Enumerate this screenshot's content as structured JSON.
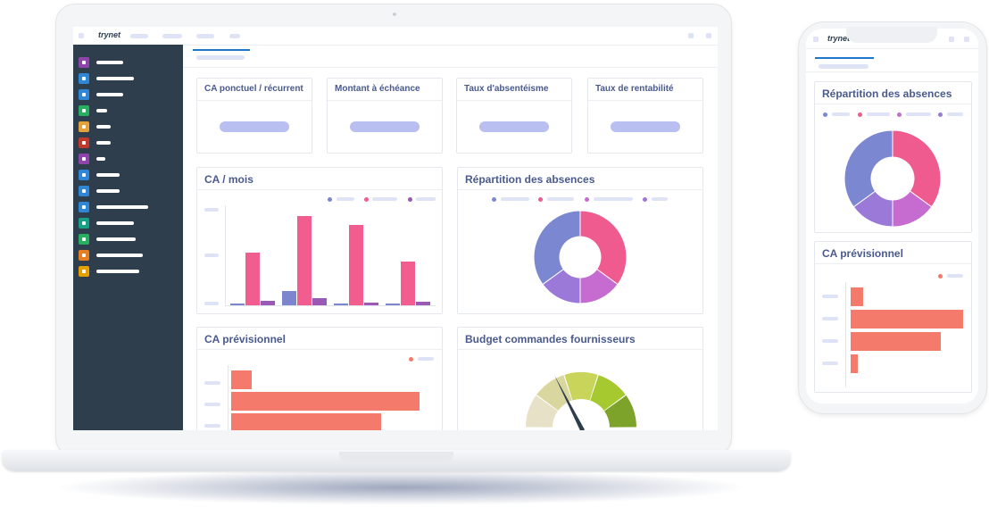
{
  "app": {
    "logo": "trynet"
  },
  "laptop": {
    "sidebar_icon_colors": [
      "#8e44ad",
      "#2f86d6",
      "#2f86d6",
      "#27ae60",
      "#e5a23b",
      "#c0392b",
      "#8e44ad",
      "#2f86d6",
      "#2f86d6",
      "#2f86d6",
      "#16a085",
      "#27ae60",
      "#e67e22",
      "#e5a000"
    ],
    "kpis": [
      {
        "title": "CA ponctuel / récurrent"
      },
      {
        "title": "Montant à échéance"
      },
      {
        "title": "Taux d'absentéisme"
      },
      {
        "title": "Taux de rentabilité"
      }
    ],
    "ca_mois": {
      "title": "CA / mois"
    },
    "absences": {
      "title": "Répartition des absences"
    },
    "ca_prev": {
      "title": "CA prévisionnel"
    },
    "budget": {
      "title": "Budget commandes fournisseurs"
    }
  },
  "phone": {
    "absences": {
      "title": "Répartition des absences"
    },
    "ca_prev": {
      "title": "CA prévisionnel"
    }
  },
  "chart_data": [
    {
      "type": "bar",
      "title": "CA / mois",
      "categories": [
        "",
        "",
        "",
        ""
      ],
      "series": [
        {
          "color": "#7b86cf",
          "values": [
            1,
            16,
            1,
            1
          ]
        },
        {
          "color": "#f05d8e",
          "values": [
            58,
            98,
            88,
            48
          ]
        },
        {
          "color": "#9b59b6",
          "values": [
            5,
            8,
            3,
            4
          ]
        }
      ],
      "ylim": [
        0,
        100
      ],
      "legend": "top-right"
    },
    {
      "type": "pie",
      "title": "Répartition des absences",
      "donut": true,
      "slices": [
        {
          "value": 35,
          "color": "#ef5b8e"
        },
        {
          "value": 15,
          "color": "#c66bd0"
        },
        {
          "value": 15,
          "color": "#9b79d8"
        },
        {
          "value": 35,
          "color": "#7b88d1"
        }
      ],
      "legend": "top"
    },
    {
      "type": "bar",
      "orientation": "horizontal",
      "title": "CA prévisionnel",
      "values": [
        10,
        90,
        72,
        0
      ],
      "color": "#f47b6c",
      "xlim": [
        0,
        100
      ],
      "legend": "top-right"
    },
    {
      "type": "gauge",
      "title": "Budget commandes fournisseurs",
      "segments": [
        "#e6e1c7",
        "#d9d79f",
        "#c9d45a",
        "#a6c92f",
        "#7ea32a"
      ],
      "value": 0.35
    }
  ]
}
